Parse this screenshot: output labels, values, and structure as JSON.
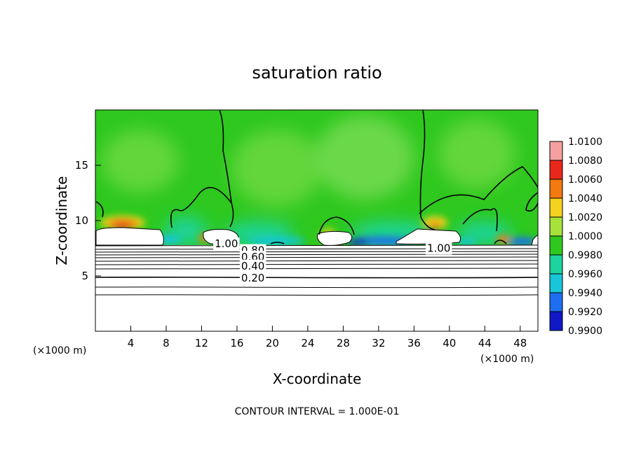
{
  "chart_data": {
    "type": "heatmap",
    "title": "saturation ratio",
    "xlabel": "X-coordinate",
    "ylabel": "Z-coordinate",
    "x_unit": "(×1000 m)",
    "y_unit": "(×1000 m)",
    "x_range": [
      0,
      50
    ],
    "y_range": [
      0,
      20
    ],
    "x_ticks": [
      "4",
      "8",
      "12",
      "16",
      "20",
      "24",
      "28",
      "32",
      "36",
      "40",
      "44",
      "48"
    ],
    "x_tick_values": [
      4,
      8,
      12,
      16,
      20,
      24,
      28,
      32,
      36,
      40,
      44,
      48
    ],
    "y_ticks": [
      "5",
      "10",
      "15"
    ],
    "y_tick_values": [
      5,
      10,
      15
    ],
    "colorbar": {
      "labels": [
        "1.0100",
        "1.0080",
        "1.0060",
        "1.0040",
        "1.0020",
        "1.0000",
        "0.9980",
        "0.9960",
        "0.9940",
        "0.9920",
        "0.9900"
      ],
      "colors": [
        "#f4a0a0",
        "#e8281c",
        "#f27a10",
        "#f5d21e",
        "#a6e23a",
        "#2ec81e",
        "#1ed49e",
        "#19c6d8",
        "#1e6ef0",
        "#1018c8",
        "#8a18b4"
      ]
    },
    "contour_labels": [
      {
        "text": "1.00",
        "x": 14.8,
        "y": 7.9
      },
      {
        "text": "0.80",
        "x": 17.8,
        "y": 7.3
      },
      {
        "text": "0.60",
        "x": 17.8,
        "y": 6.7
      },
      {
        "text": "0.40",
        "x": 17.8,
        "y": 5.9
      },
      {
        "text": "0.20",
        "x": 17.8,
        "y": 4.8
      },
      {
        "text": "1.00",
        "x": 38.8,
        "y": 7.5
      }
    ],
    "contour_interval_label": "CONTOUR INTERVAL = 1.000E-01"
  }
}
